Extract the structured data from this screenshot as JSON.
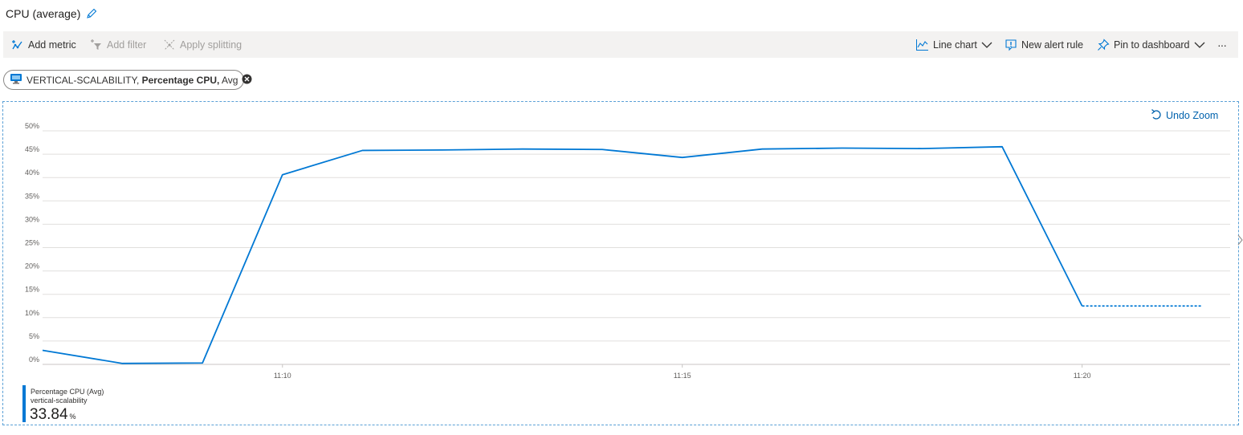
{
  "header": {
    "title": "CPU (average)"
  },
  "toolbar": {
    "add_metric": "Add metric",
    "add_filter": "Add filter",
    "apply_splitting": "Apply splitting",
    "line_chart": "Line chart",
    "new_alert_rule": "New alert rule",
    "pin_to_dashboard": "Pin to dashboard",
    "more": "···"
  },
  "metric_pill": {
    "resource": "VERTICAL-SCALABILITY,",
    "metric": "Percentage CPU,",
    "aggregation": "Avg"
  },
  "chart_controls": {
    "undo_zoom": "Undo Zoom"
  },
  "legend": {
    "name": "Percentage CPU (Avg)",
    "resource": "vertical-scalability",
    "value": "33.84",
    "unit": "%"
  },
  "colors": {
    "series": "#0078d4",
    "grid": "#e1dfdd",
    "accent": "#0062ad"
  },
  "icons": [
    "pencil-icon",
    "add-metric-icon",
    "filter-icon",
    "splitting-icon",
    "line-chart-icon",
    "chevron-down-icon",
    "alert-icon",
    "pin-icon",
    "vm-icon",
    "close-circle-icon",
    "undo-icon"
  ],
  "chart_data": {
    "type": "line",
    "yticks": [
      "50%",
      "45%",
      "40%",
      "35%",
      "30%",
      "25%",
      "20%",
      "15%",
      "10%",
      "5%",
      "0%"
    ],
    "ylim": [
      0,
      50
    ],
    "xlim": [
      7.0,
      21.5
    ],
    "xticks": [
      {
        "value": 10,
        "label": "11:10"
      },
      {
        "value": 15,
        "label": "11:15"
      },
      {
        "value": 20,
        "label": "11:20"
      }
    ],
    "series": [
      {
        "points": [
          [
            7.0,
            3.0
          ],
          [
            8.0,
            0.2
          ],
          [
            9.0,
            0.3
          ],
          [
            10.0,
            40.6
          ],
          [
            11.0,
            45.8
          ],
          [
            12.0,
            45.9
          ],
          [
            13.0,
            46.1
          ],
          [
            14.0,
            46.0
          ],
          [
            15.0,
            44.3
          ],
          [
            16.0,
            46.1
          ],
          [
            17.0,
            46.3
          ],
          [
            18.0,
            46.2
          ],
          [
            19.0,
            46.6
          ],
          [
            20.0,
            12.5
          ]
        ],
        "projected": [
          [
            20.0,
            12.5
          ],
          [
            22.0,
            12.5
          ]
        ]
      }
    ],
    "grid": true,
    "legend": "bottom-left"
  }
}
